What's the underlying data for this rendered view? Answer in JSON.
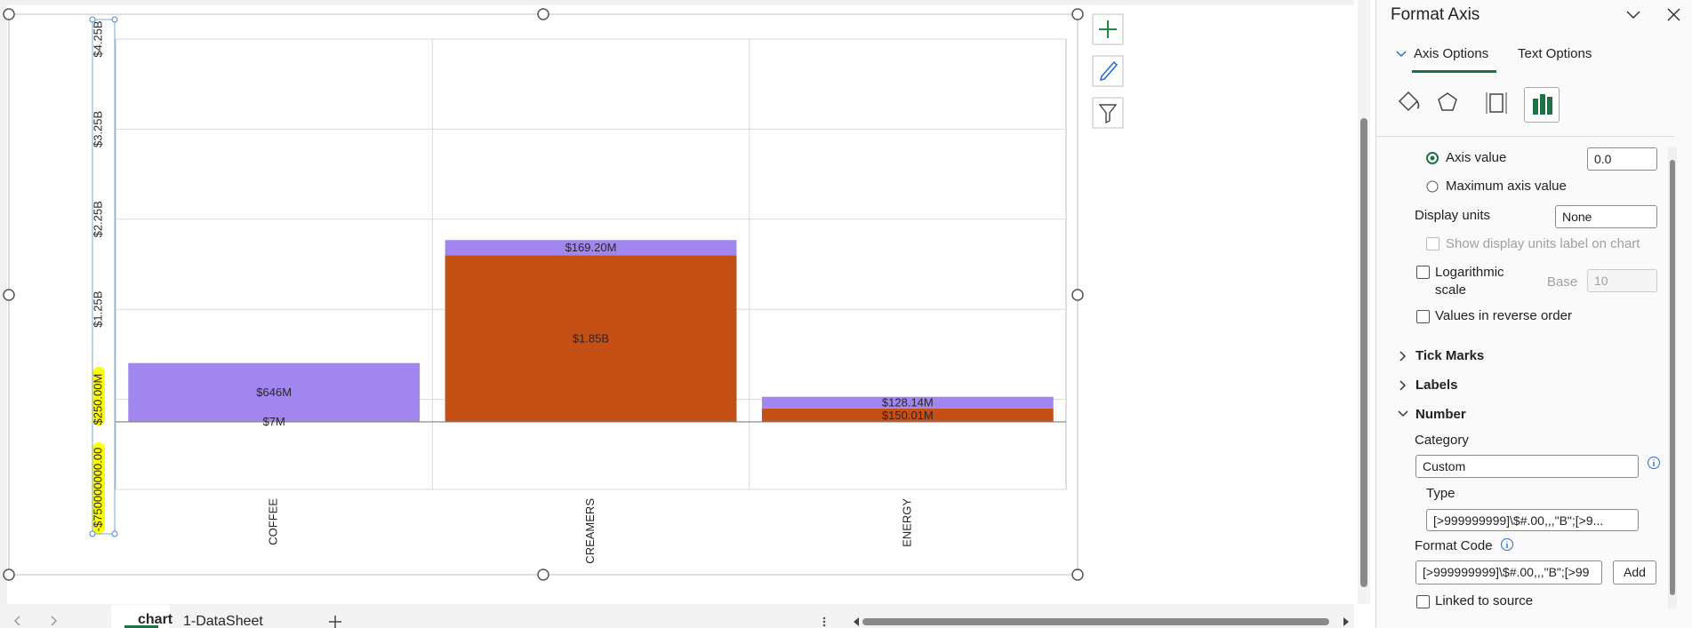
{
  "chart_data": {
    "type": "bar",
    "stacked": true,
    "categories": [
      "COFFEE",
      "CREAMERS",
      "ENERGY"
    ],
    "series": [
      {
        "color": "#c55016",
        "values": [
          7000000,
          1850000000,
          150010000
        ],
        "value_labels": [
          "$7M",
          "$1.85B",
          "$150.01M"
        ]
      },
      {
        "color": "#a186f0",
        "values": [
          646000000,
          169200000,
          128140000
        ],
        "value_labels": [
          "$646M",
          "$169.20M",
          "$128.14M"
        ]
      }
    ],
    "ylim": [
      -750000000,
      4250000000
    ],
    "yticks": [
      {
        "value": -750000000,
        "label": "-$750000000.00"
      },
      {
        "value": 250000000,
        "label": "$250.00M"
      },
      {
        "value": 1250000000,
        "label": "$1.25B"
      },
      {
        "value": 2250000000,
        "label": "$2.25B"
      },
      {
        "value": 3250000000,
        "label": "$3.25B"
      },
      {
        "value": 4250000000,
        "label": "$4.25B"
      }
    ],
    "grid": true
  },
  "ui": {
    "sheet_tabs": [
      "chart",
      "1-DataSheet"
    ],
    "pane": {
      "title": "Format Axis",
      "tabs": [
        "Axis Options",
        "Text Options"
      ],
      "axis_value_label": "Axis value",
      "axis_value": "0.0",
      "max_axis_value": "Maximum axis value",
      "display_units_label": "Display units",
      "display_units": "None",
      "show_units_label": "Show display units label on chart",
      "log_scale": "Logarithmic scale",
      "base_label": "Base",
      "base": "10",
      "reverse": "Values in reverse order",
      "sections": [
        "Tick Marks",
        "Labels",
        "Number"
      ],
      "category_label": "Category",
      "category": "Custom",
      "type_label": "Type",
      "type": "[>999999999]\\$#.00,,,\"B\";[>9...",
      "format_code_label": "Format Code",
      "format_code": "[>999999999]\\$#.00,,,\"B\";[>99",
      "add": "Add",
      "linked": "Linked to source"
    }
  }
}
